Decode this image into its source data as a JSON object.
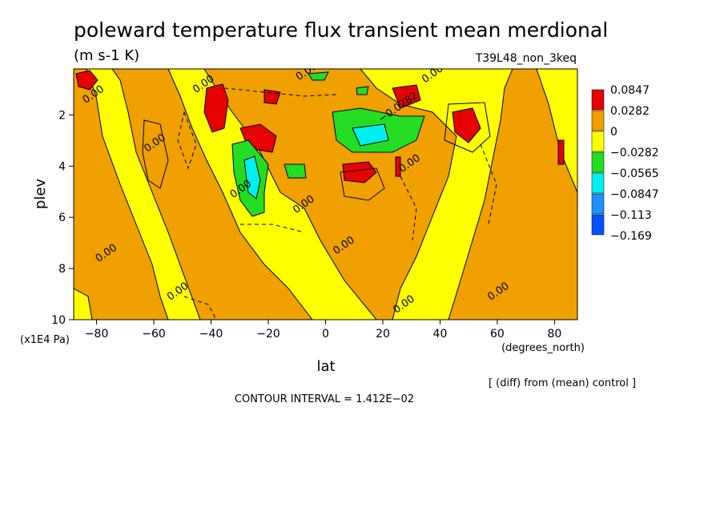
{
  "chart_data": {
    "type": "heatmap",
    "title": "poleward temperature flux transient mean merdional",
    "subtitle": "(m s-1 K)",
    "run_id": "T39L48_non_3keq",
    "xlabel": "lat",
    "x_unit": "(degrees_north)",
    "ylabel": "plev",
    "y_unit": "(x1E4 Pa)",
    "xlim": [
      -88,
      88
    ],
    "ylim": [
      10,
      0.2
    ],
    "x_ticks": [
      {
        "value": -80,
        "label": "−80"
      },
      {
        "value": -60,
        "label": "−60"
      },
      {
        "value": -40,
        "label": "−40"
      },
      {
        "value": -20,
        "label": "−20"
      },
      {
        "value": 0,
        "label": "0"
      },
      {
        "value": 20,
        "label": "20"
      },
      {
        "value": 40,
        "label": "40"
      },
      {
        "value": 60,
        "label": "60"
      },
      {
        "value": 80,
        "label": "80"
      }
    ],
    "y_ticks": [
      {
        "value": 2,
        "label": "2"
      },
      {
        "value": 4,
        "label": "4"
      },
      {
        "value": 6,
        "label": "6"
      },
      {
        "value": 8,
        "label": "8"
      },
      {
        "value": 10,
        "label": "10"
      }
    ],
    "diff_note": "[ (diff) from (mean) control ]",
    "contour_interval": "CONTOUR INTERVAL = 1.412E−02",
    "color_levels": [
      {
        "label": "0.0847",
        "color": "#e60000"
      },
      {
        "label": "0.0282",
        "color": "#f0a000"
      },
      {
        "label": "0",
        "color": "#ffff00"
      },
      {
        "label": "−0.0282",
        "color": "#22dd22"
      },
      {
        "label": "−0.0565",
        "color": "#00f0f0"
      },
      {
        "label": "−0.0847",
        "color": "#1e90ff"
      },
      {
        "label": "−0.113",
        "color": "#0050ff"
      },
      {
        "label": "−0.169",
        "color": ""
      }
    ],
    "colors": {
      "positive": "#f0a000",
      "strong_positive": "#e60000",
      "weak_negative": "#ffff00",
      "negative": "#22dd22",
      "strong_negative": "#00f0f0"
    },
    "contour_labels": [
      {
        "lat": -80.5,
        "plev": 1.3,
        "text": "0.00"
      },
      {
        "lat": -59,
        "plev": 3.2,
        "text": "0.00"
      },
      {
        "lat": -42,
        "plev": 0.9,
        "text": "0.00"
      },
      {
        "lat": -29,
        "plev": 5.0,
        "text": "0.00"
      },
      {
        "lat": -6,
        "plev": 0.4,
        "text": "0.00"
      },
      {
        "lat": 38,
        "plev": 0.5,
        "text": "0.00"
      },
      {
        "lat": 26,
        "plev": 1.8,
        "text": "−0.0282"
      },
      {
        "lat": 30,
        "plev": 4.0,
        "text": "0.00"
      },
      {
        "lat": -7,
        "plev": 5.6,
        "text": "0.00"
      },
      {
        "lat": 7,
        "plev": 7.2,
        "text": "0.00"
      },
      {
        "lat": -76,
        "plev": 7.5,
        "text": "0.00"
      },
      {
        "lat": -51,
        "plev": 9.0,
        "text": "0.00"
      },
      {
        "lat": 28,
        "plev": 9.5,
        "text": "0.00"
      },
      {
        "lat": 61,
        "plev": 9.0,
        "text": "0.00"
      }
    ]
  }
}
